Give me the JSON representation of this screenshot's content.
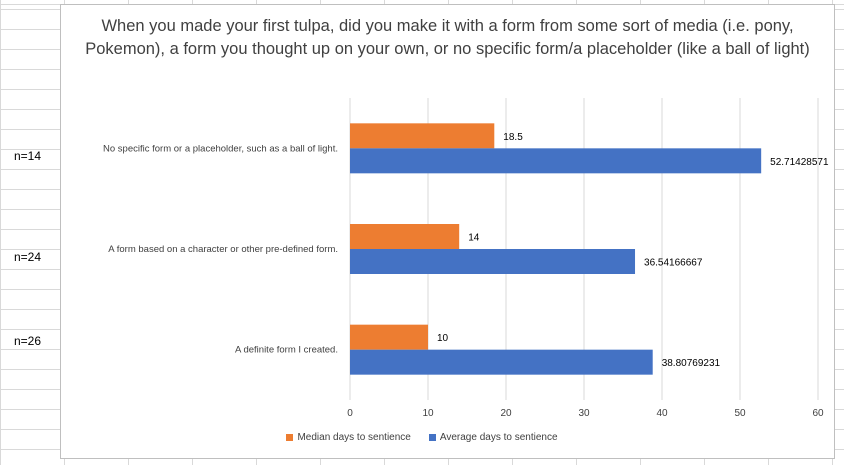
{
  "sheet": {
    "row_labels": [
      "n=14",
      "n=24",
      "n=26"
    ]
  },
  "chart_data": {
    "type": "bar",
    "orientation": "horizontal",
    "title": "When you made your first tulpa, did you make it with a form from some sort of media (i.e. pony, Pokemon), a form you thought up on your own, or no specific form/a placeholder (like a ball of light)",
    "categories": [
      "No specific form or a placeholder, such as a ball of light.",
      "A form based on a character or other pre-defined form.",
      "A definite form I created."
    ],
    "series": [
      {
        "name": "Median days to sentience",
        "color": "#ED7D31",
        "values": [
          18.5,
          14,
          10
        ],
        "labels": [
          "18.5",
          "14",
          "10"
        ]
      },
      {
        "name": "Average days to sentience",
        "color": "#4472C4",
        "values": [
          52.71428571,
          36.54166667,
          38.80769231
        ],
        "labels": [
          "52.71428571",
          "36.54166667",
          "38.80769231"
        ]
      }
    ],
    "xlim": [
      0,
      60
    ],
    "xticks": [
      0,
      10,
      20,
      30,
      40,
      50,
      60
    ],
    "grid": true,
    "legend_position": "bottom"
  }
}
